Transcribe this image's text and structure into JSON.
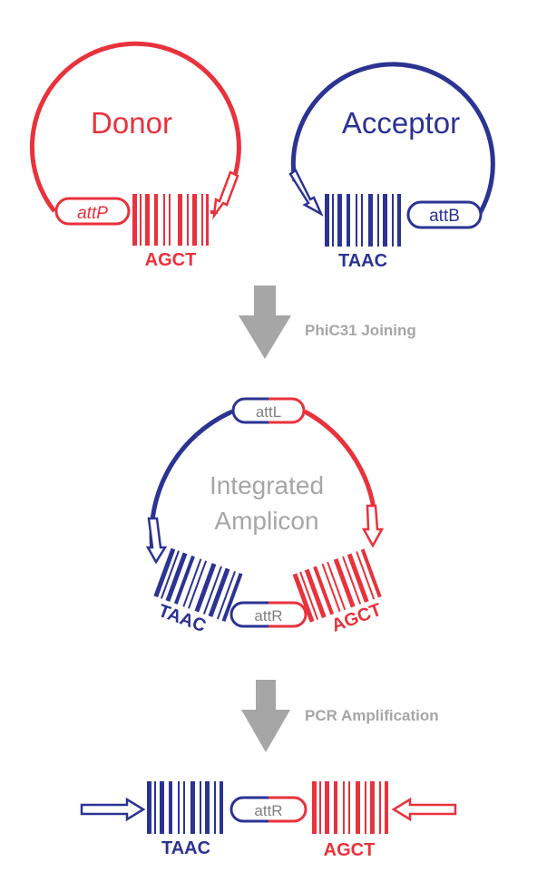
{
  "colors": {
    "red": "#e8323c",
    "blue": "#2b3393",
    "gray": "#a6a6a6",
    "white": "#ffffff"
  },
  "donor": {
    "title": "Donor",
    "site": "attP",
    "seq": "AGCT"
  },
  "acceptor": {
    "title": "Acceptor",
    "site": "attB",
    "seq": "TAAC"
  },
  "step1": {
    "label": "PhiC31 Joining"
  },
  "integrated": {
    "title_line1": "Integrated",
    "title_line2": "Amplicon",
    "site_top": "attL",
    "site_bottom": "attR",
    "seq_left": "TAAC",
    "seq_right": "AGCT"
  },
  "step2": {
    "label": "PCR Amplification"
  },
  "product": {
    "site": "attR",
    "seq_left": "TAAC",
    "seq_right": "AGCT"
  }
}
